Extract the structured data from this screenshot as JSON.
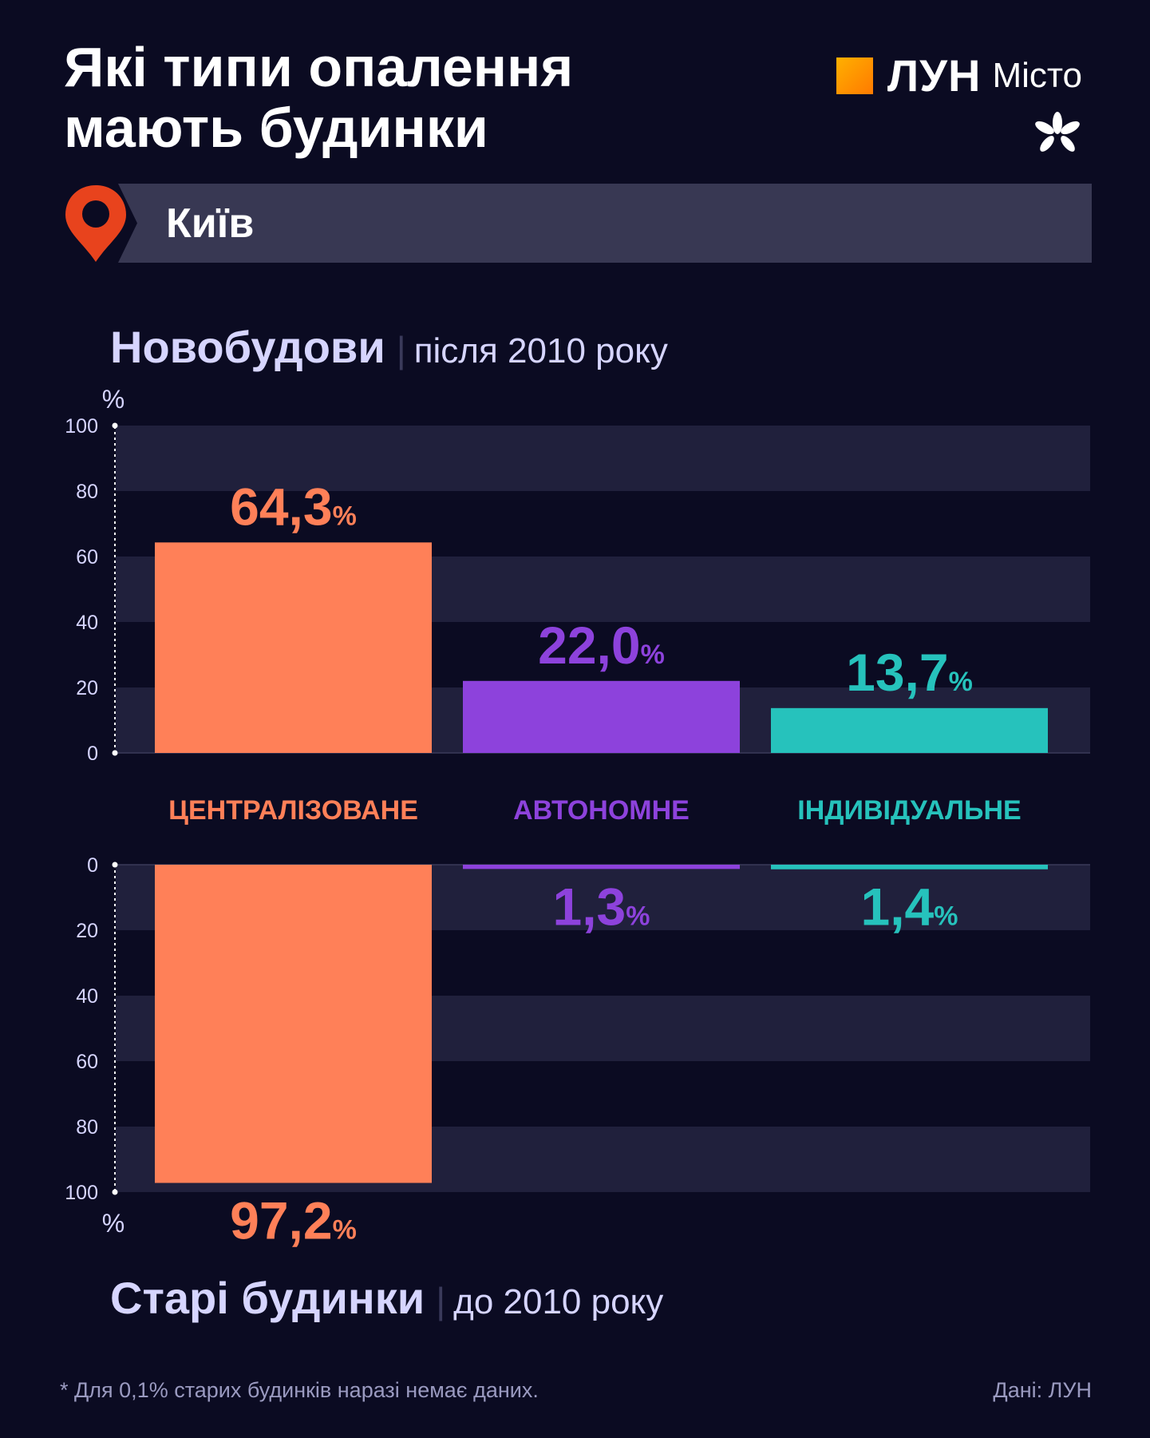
{
  "title_line1": "Які типи опалення",
  "title_line2": "мають будинки",
  "logo": {
    "brand": "ЛУН",
    "sub": "Місто",
    "icon": "chestnut-leaf-icon"
  },
  "city": "Київ",
  "colors": {
    "background": "#0b0b22",
    "centralized": "#ff8058",
    "autonomous": "#8d42dc",
    "individual": "#26c2bc",
    "axis_text": "#d6d5ff",
    "band": "#20203c",
    "pin": "#e8431d"
  },
  "chart_data": {
    "type": "bar",
    "unit_label": "%",
    "categories": [
      "ЦЕНТРАЛІЗОВАНЕ",
      "АВТОНОМНЕ",
      "ІНДИВІДУАЛЬНЕ"
    ],
    "yticks": [
      "0",
      "20",
      "40",
      "60",
      "80",
      "100"
    ],
    "ylim": [
      0,
      100
    ],
    "grid": "alternating bands",
    "panels": [
      {
        "title": "Новобудови",
        "subtitle": "після 2010 року",
        "direction": "up",
        "values": [
          64.3,
          22.0,
          13.7
        ],
        "labels": [
          "64,3",
          "22,0",
          "13,7"
        ]
      },
      {
        "title": "Старі будинки",
        "subtitle": "до 2010 року",
        "direction": "down",
        "values": [
          97.2,
          1.3,
          1.4
        ],
        "labels": [
          "97,2",
          "1,3",
          "1,4"
        ]
      }
    ]
  },
  "footnote": "* Для 0,1% старих будинків наразі немає даних.",
  "source": "Дані: ЛУН"
}
